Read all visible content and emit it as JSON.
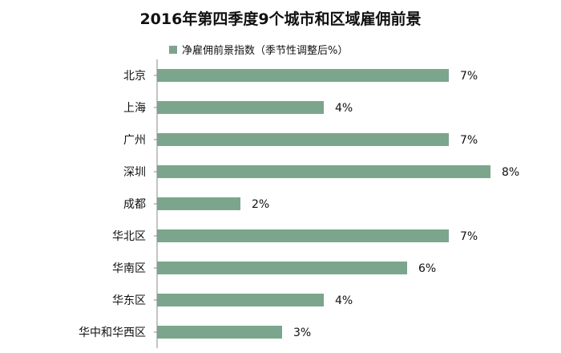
{
  "chart_data": {
    "type": "bar",
    "orientation": "horizontal",
    "title": "2016年第四季度9个城市和区域雇佣前景",
    "legend": {
      "label": "净雇佣前景指数（季节性调整后%）",
      "position": "top-center"
    },
    "categories": [
      "北京",
      "上海",
      "广州",
      "深圳",
      "成都",
      "华北区",
      "华南区",
      "华东区",
      "华中和华西区"
    ],
    "series": [
      {
        "name": "净雇佣前景指数（季节性调整后%）",
        "values": [
          7,
          4,
          7,
          8,
          2,
          7,
          6,
          4,
          3
        ],
        "labels": [
          "7%",
          "4%",
          "7%",
          "8%",
          "2%",
          "7%",
          "6%",
          "4%",
          "3%"
        ],
        "color": "#7BA58D"
      }
    ],
    "xlim": [
      0,
      8.5
    ],
    "grid": false,
    "xlabel": "",
    "ylabel": ""
  }
}
